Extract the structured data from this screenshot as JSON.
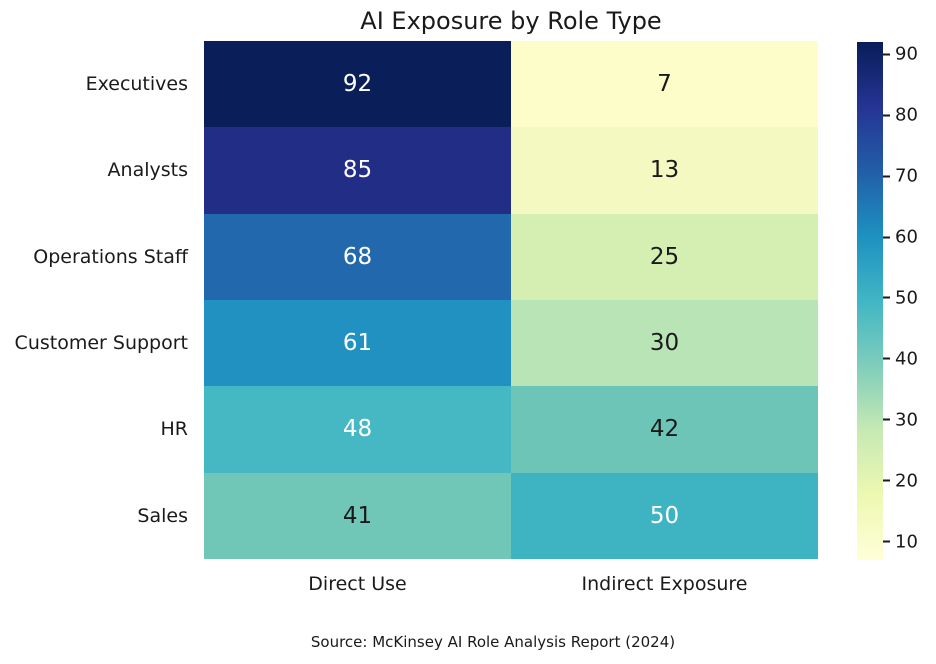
{
  "title": "AI Exposure by Role Type",
  "caption": "Source: McKinsey AI Role Analysis Report (2024)",
  "colors": {
    "background": "#ffffff",
    "text": "#1a1a1a",
    "annotation_light": "#ffffff",
    "annotation_dark": "#1a1a1a"
  },
  "chart_data": {
    "type": "heatmap",
    "title": "AI Exposure by Role Type",
    "xlabel": "",
    "ylabel": "",
    "colormap": "YlGnBu",
    "rows": [
      "Executives",
      "Analysts",
      "Operations Staff",
      "Customer Support",
      "HR",
      "Sales"
    ],
    "columns": [
      "Direct Use",
      "Indirect Exposure"
    ],
    "values": [
      [
        92,
        7
      ],
      [
        85,
        13
      ],
      [
        68,
        25
      ],
      [
        61,
        30
      ],
      [
        48,
        42
      ],
      [
        41,
        50
      ]
    ],
    "cell_colors": [
      [
        "#0a1e5a",
        "#fdfdc9"
      ],
      [
        "#222e86",
        "#f3f9c0"
      ],
      [
        "#2268ad",
        "#d5efb3"
      ],
      [
        "#2191c1",
        "#b8e4b6"
      ],
      [
        "#45b8c4",
        "#6dc5b8"
      ],
      [
        "#71c7b7",
        "#3eb4c3"
      ]
    ],
    "cell_text_colors": [
      [
        "#ffffff",
        "#1a1a1a"
      ],
      [
        "#ffffff",
        "#1a1a1a"
      ],
      [
        "#ffffff",
        "#1a1a1a"
      ],
      [
        "#ffffff",
        "#1a1a1a"
      ],
      [
        "#ffffff",
        "#1a1a1a"
      ],
      [
        "#1a1a1a",
        "#ffffff"
      ]
    ],
    "colorbar": {
      "position": "right",
      "vmin": 7,
      "vmax": 92,
      "ticks": [
        10,
        20,
        30,
        40,
        50,
        60,
        70,
        80,
        90
      ],
      "gradient_stops_bottom_to_top": [
        "#ffffd9",
        "#edf8b1",
        "#c7e9b4",
        "#7fcdbb",
        "#41b6c4",
        "#1d91c0",
        "#225ea8",
        "#253494",
        "#081d58"
      ]
    }
  }
}
